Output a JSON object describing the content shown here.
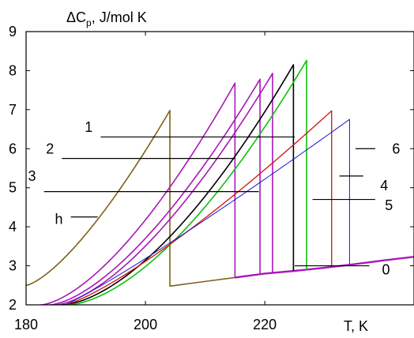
{
  "chart_data": {
    "type": "line",
    "xlabel": "T, K",
    "ylabel": {
      "prefix": "ΔC",
      "sub": "p",
      "suffix": ", J/mol K"
    },
    "xlim": [
      180,
      245
    ],
    "ylim": [
      2,
      9
    ],
    "x_ticks": [
      180,
      200,
      220
    ],
    "y_ticks": [
      2,
      3,
      4,
      5,
      6,
      7,
      8,
      9
    ],
    "grid": false,
    "colors": {
      "brown": "#806018",
      "magenta": "#a818b8",
      "black": "#000000",
      "green": "#10c010",
      "red": "#d01010",
      "blue": "#1818d0",
      "baseline": "#a818b8"
    },
    "baseline": {
      "color": "baseline",
      "x": [
        215,
        220,
        225,
        230,
        235,
        240,
        245
      ],
      "y": [
        2.7,
        2.8,
        2.87,
        2.95,
        3.04,
        3.14,
        3.23
      ]
    },
    "series": [
      {
        "color": "brown",
        "width": 1.6,
        "x_start": 180,
        "y_start": 2.5,
        "x_peak": 204.1,
        "y_peak": 6.98,
        "y_drop": 2.48,
        "x_end": 215,
        "y_end": 2.7,
        "curvature": 1.4
      },
      {
        "color": "magenta",
        "width": 1.6,
        "x_start": 182.5,
        "y_start": 2.0,
        "x_peak": 215,
        "y_peak": 7.68,
        "y_drop": 2.7,
        "curvature": 1.55
      },
      {
        "color": "magenta",
        "width": 1.6,
        "x_start": 184,
        "y_start": 2.0,
        "x_peak": 219.2,
        "y_peak": 7.78,
        "y_drop": 2.8,
        "curvature": 1.55
      },
      {
        "color": "magenta",
        "width": 1.6,
        "x_start": 185,
        "y_start": 2.0,
        "x_peak": 221.3,
        "y_peak": 7.93,
        "y_drop": 2.84,
        "curvature": 1.55
      },
      {
        "color": "black",
        "width": 1.6,
        "x_start": 186,
        "y_start": 2.0,
        "x_peak": 224.8,
        "y_peak": 8.15,
        "y_drop": 2.87,
        "curvature": 1.65
      },
      {
        "color": "green",
        "width": 1.6,
        "x_start": 187,
        "y_start": 2.0,
        "x_peak": 227.0,
        "y_peak": 8.26,
        "y_drop": 2.9,
        "curvature": 1.65
      },
      {
        "color": "red",
        "width": 1.3,
        "x_start": 186.5,
        "y_start": 2.0,
        "x_peak": 231.2,
        "y_peak": 6.97,
        "y_drop": 2.98,
        "curvature": 1.25
      },
      {
        "color": "blue",
        "width": 1.0,
        "x_start": 186.5,
        "y_start": 2.0,
        "x_peak": 234.2,
        "y_peak": 6.75,
        "y_drop": 3.03,
        "curvature": 1.1
      }
    ],
    "annotations": [
      {
        "text": "1",
        "lx": 190.5,
        "ly": 6.55,
        "x1": 192.5,
        "x2": 225.0,
        "y": 6.3
      },
      {
        "text": "2",
        "lx": 184.0,
        "ly": 6.0,
        "x1": 186.0,
        "x2": 215.0,
        "y": 5.75
      },
      {
        "text": "3",
        "lx": 181.0,
        "ly": 5.3,
        "x1": 183.0,
        "x2": 219.0,
        "y": 4.9
      },
      {
        "text": "h",
        "lx": 185.5,
        "ly": 4.2,
        "x1": 187.5,
        "x2": 192.0,
        "y": 4.25
      },
      {
        "text": "6",
        "lx": 242.0,
        "ly": 6.0,
        "x1": 235.2,
        "x2": 238.5,
        "y": 6.0
      },
      {
        "text": "4",
        "lx": 240.0,
        "ly": 5.05,
        "x1": 232.5,
        "x2": 236.5,
        "y": 5.3
      },
      {
        "text": "5",
        "lx": 240.8,
        "ly": 4.55,
        "x1": 228.0,
        "x2": 238.5,
        "y": 4.7
      },
      {
        "text": "0",
        "lx": 240.3,
        "ly": 2.9,
        "x1": 225.0,
        "x2": 237.5,
        "y": 3.0
      }
    ]
  }
}
